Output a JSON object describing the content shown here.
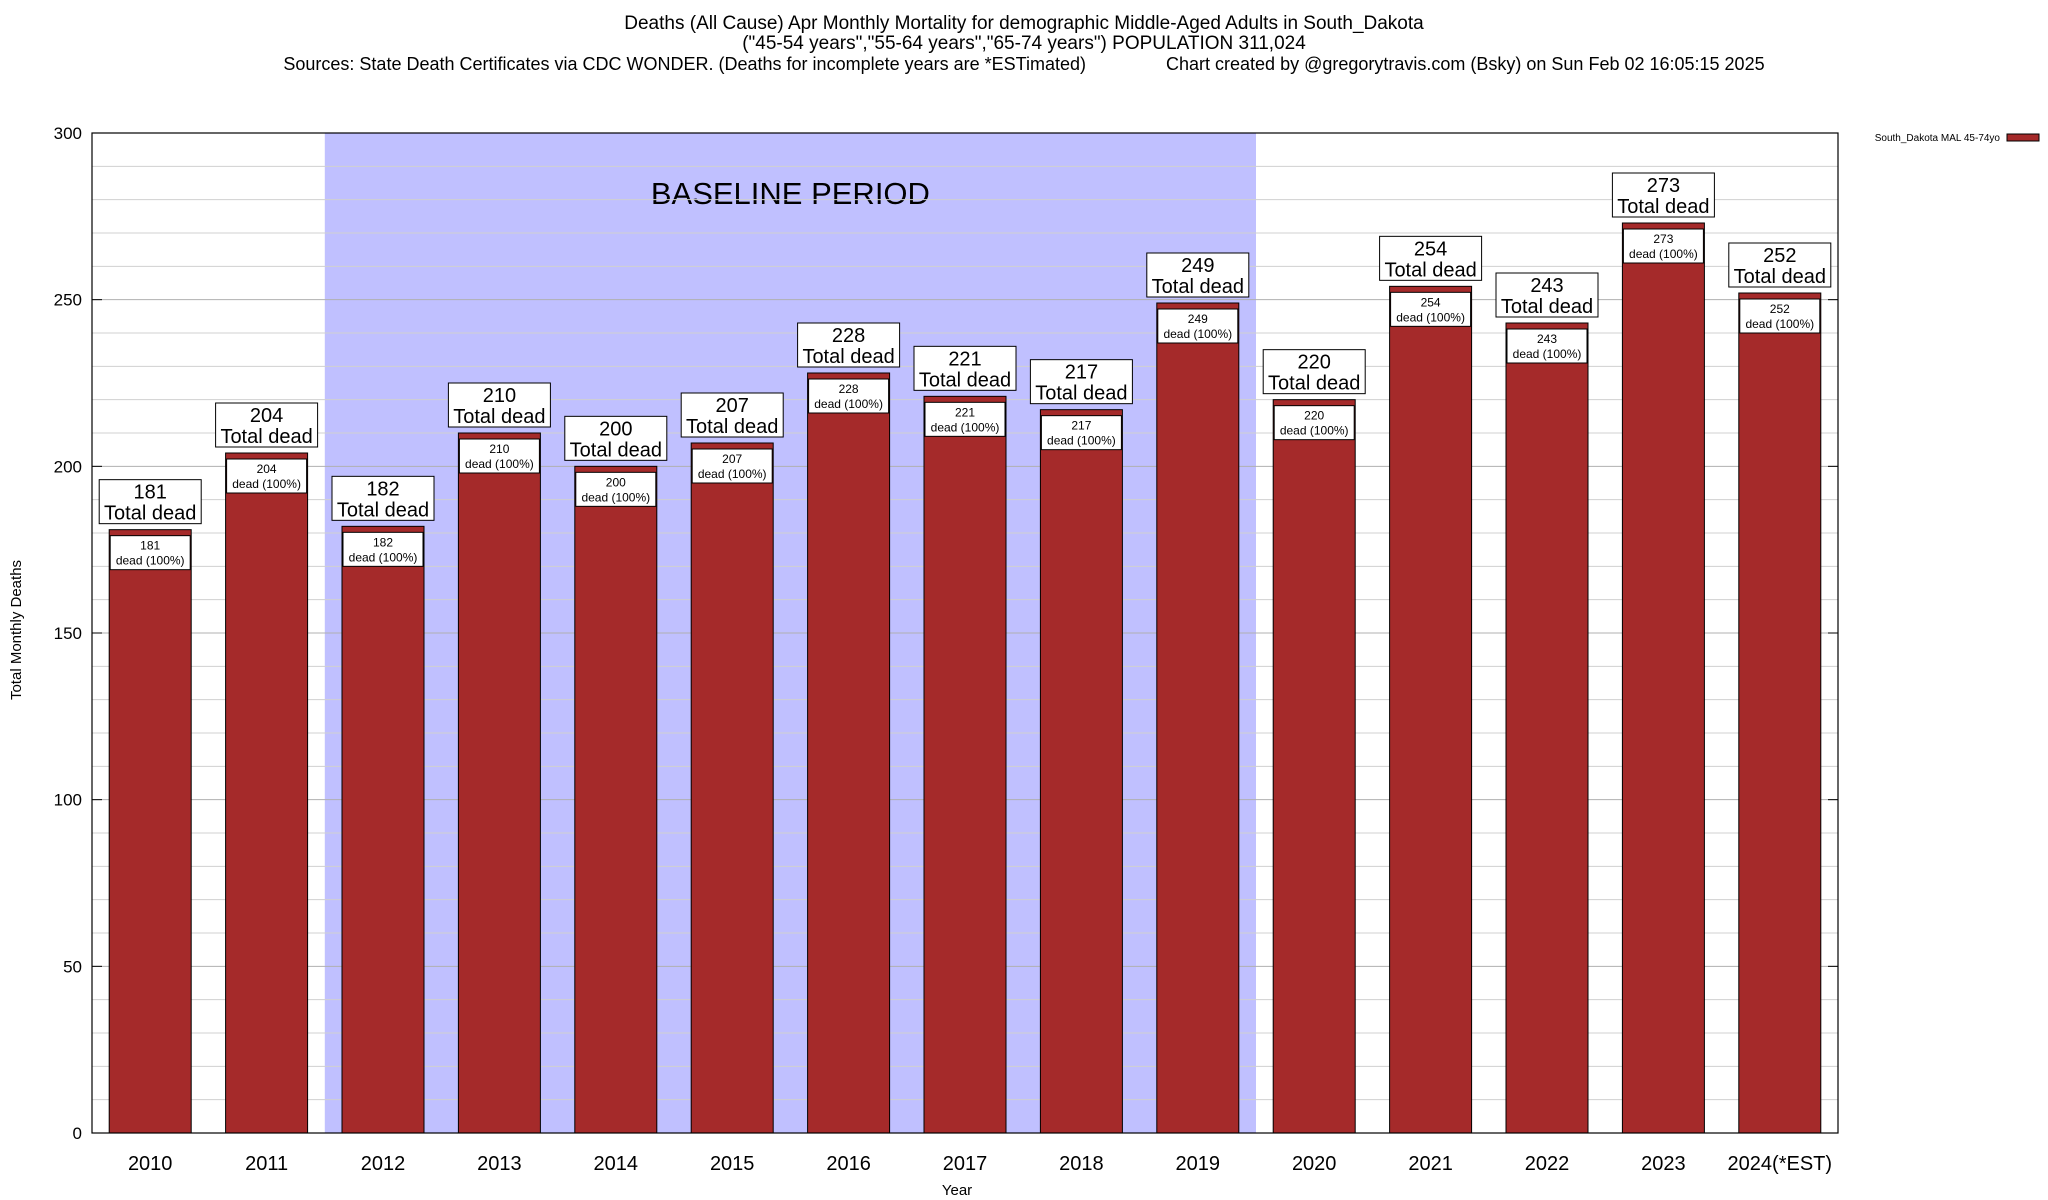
{
  "header": {
    "line1": "Deaths (All Cause) Apr Monthly Mortality for demographic Middle-Aged Adults in South_Dakota",
    "line2": "(\"45-54 years\",\"55-64 years\",\"65-74 years\") POPULATION 311,024",
    "line3": "Sources: State Death Certificates via CDC WONDER. (Deaths for incomplete years are *ESTimated)                Chart created by @gregorytravis.com (Bsky) on Sun Feb 02 16:05:15 2025"
  },
  "chart_data": {
    "type": "bar",
    "title": "Deaths (All Cause) Apr Monthly Mortality for demographic Middle-Aged Adults in South_Dakota",
    "xlabel": "Year",
    "ylabel": "Total Monthly Deaths",
    "ylim": [
      0,
      300
    ],
    "yticks": [
      0,
      50,
      100,
      150,
      200,
      250,
      300
    ],
    "categories": [
      "2010",
      "2011",
      "2012",
      "2013",
      "2014",
      "2015",
      "2016",
      "2017",
      "2018",
      "2019",
      "2020",
      "2021",
      "2022",
      "2023",
      "2024(*EST)"
    ],
    "series": [
      {
        "name": "South_Dakota MAL 45-74yo",
        "values": [
          181,
          204,
          182,
          210,
          200,
          207,
          228,
          221,
          217,
          249,
          220,
          254,
          243,
          273,
          252
        ],
        "color": "#a52a2a"
      }
    ],
    "total_label": "Total dead",
    "inner_label": "dead (100%)",
    "baseline": {
      "label": "BASELINE PERIOD",
      "start": "2012",
      "end": "2019",
      "color": "#c0c0ff"
    },
    "grid": true,
    "legend": "top-right"
  }
}
